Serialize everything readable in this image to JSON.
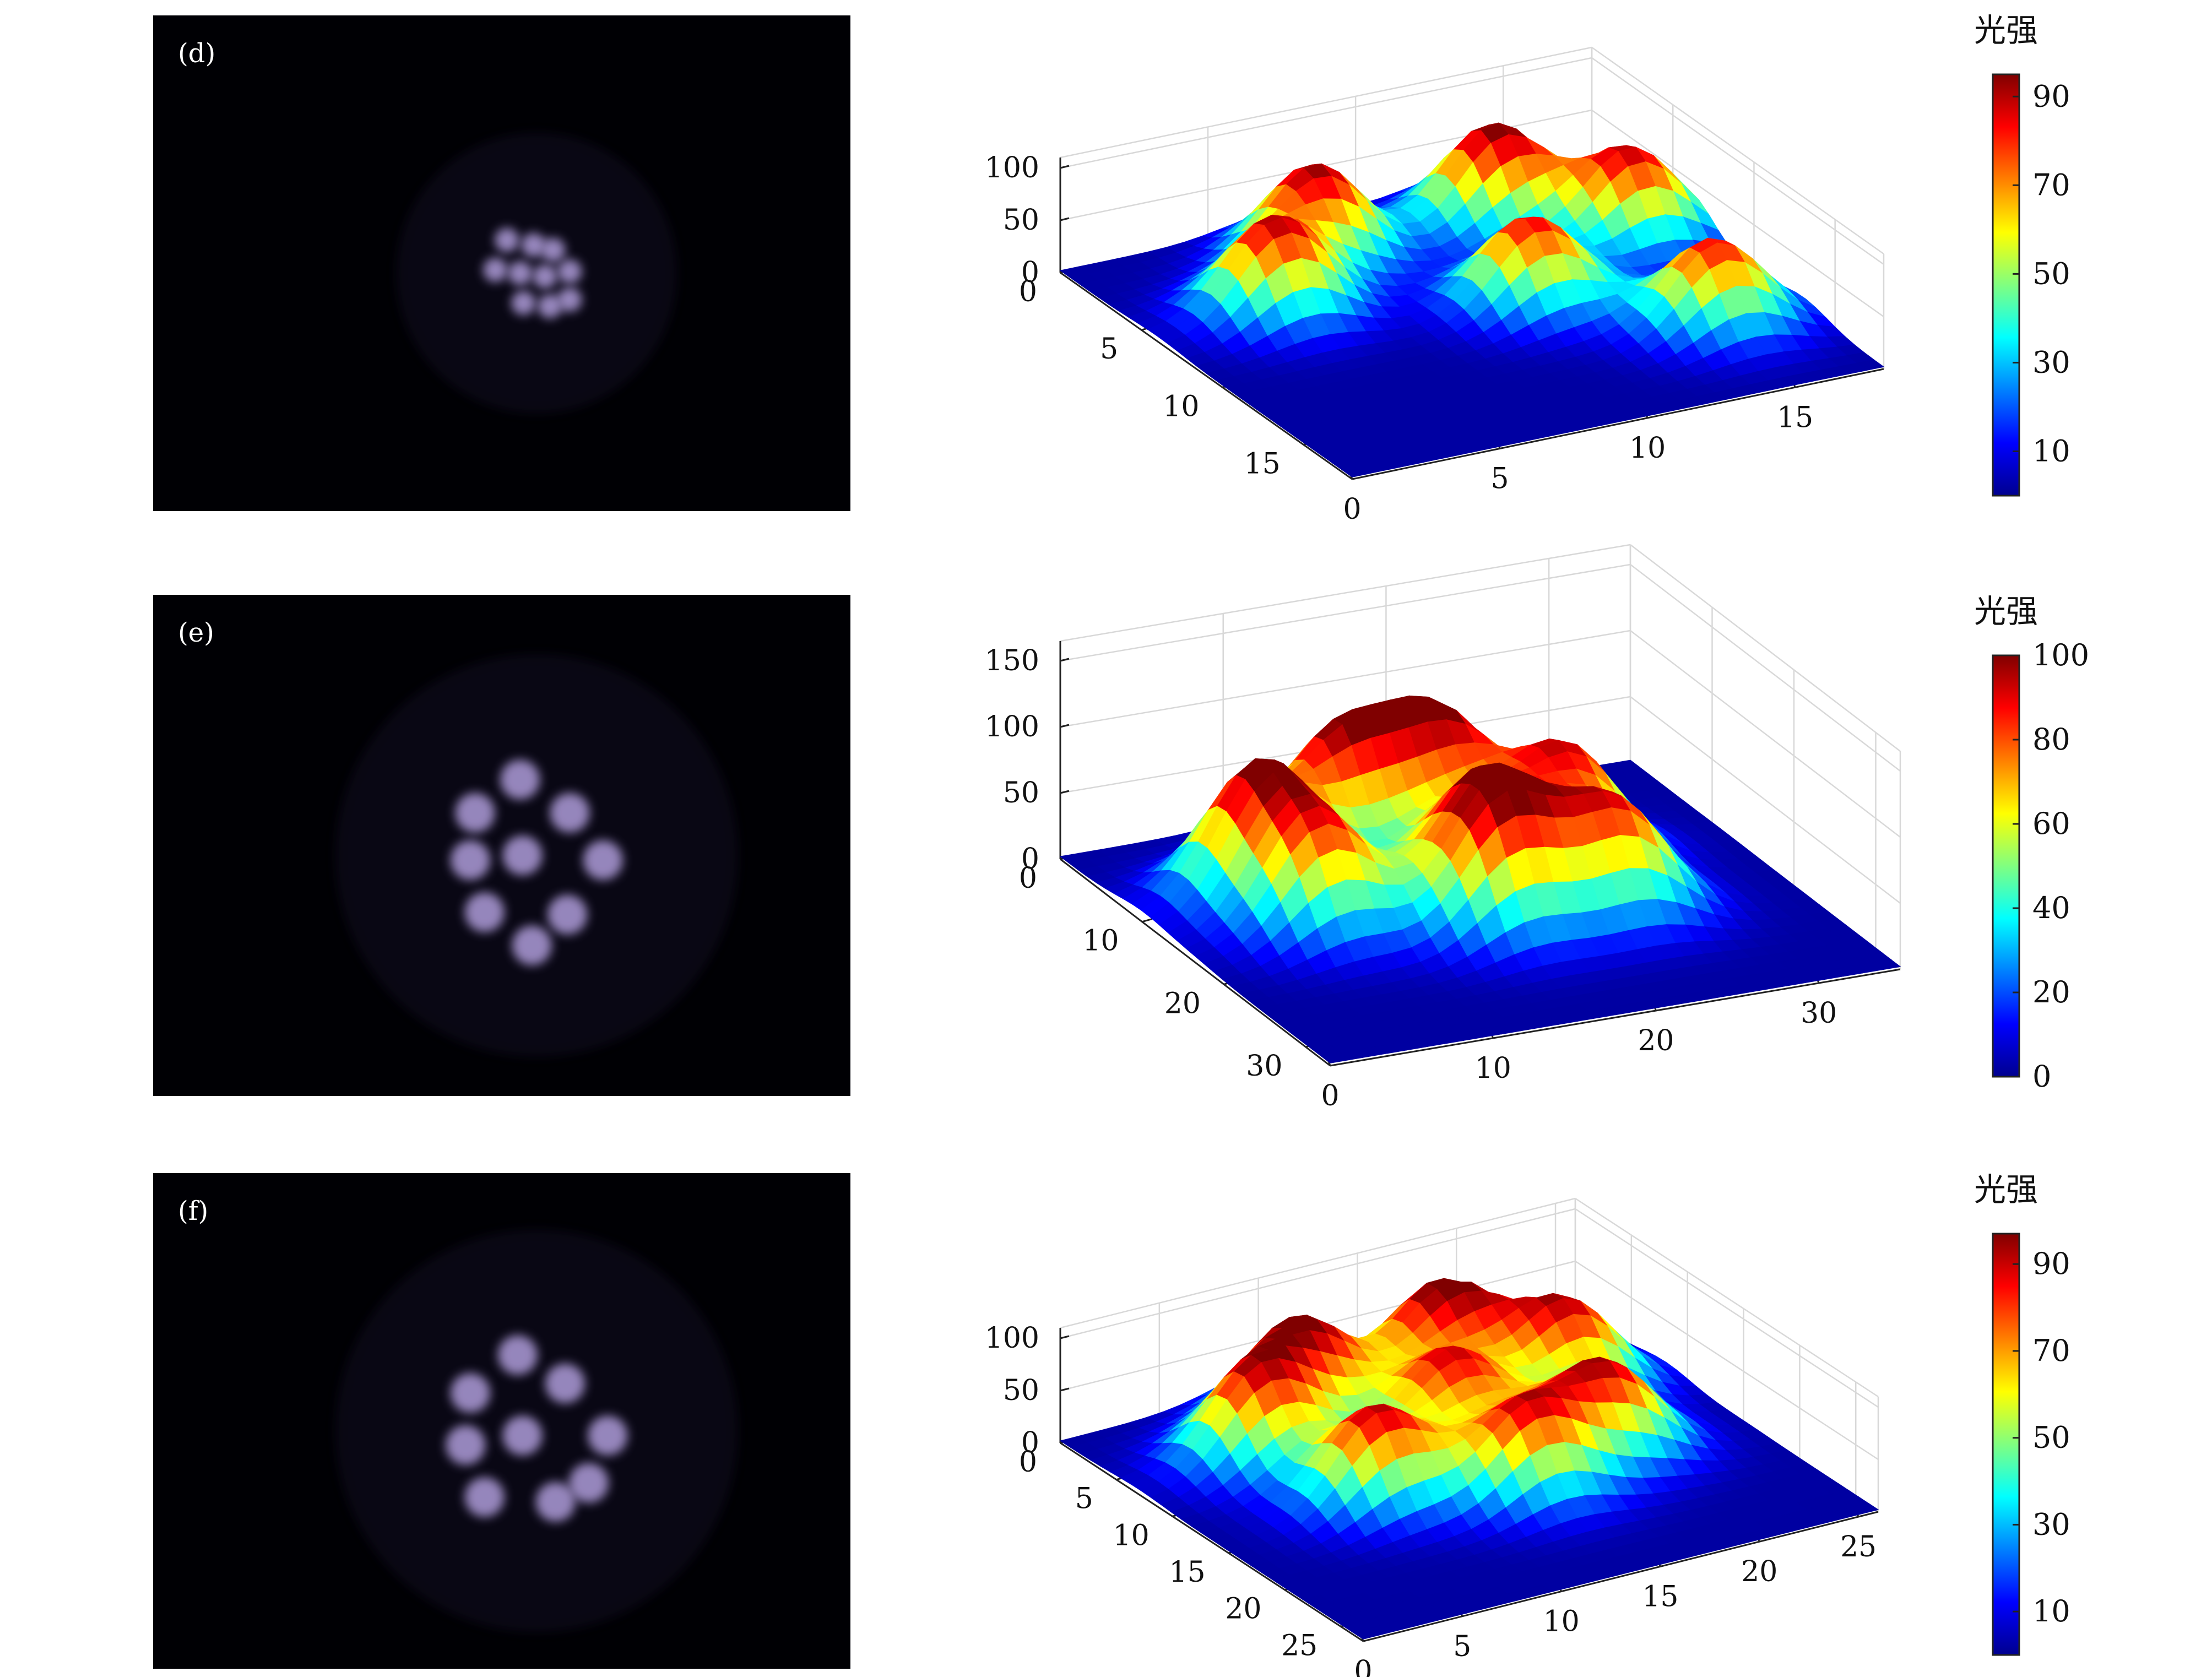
{
  "figure": {
    "background": "#ffffff"
  },
  "style": {
    "photo_background": "#000004",
    "photo_glow": "#b9a6e6",
    "colormap": [
      "#00008f",
      "#0000ff",
      "#0080ff",
      "#00ffff",
      "#80ff80",
      "#ffff00",
      "#ff8000",
      "#ff0000",
      "#800000"
    ]
  },
  "chart_data": [
    {
      "type": "heatmap",
      "panel_label": "(d)",
      "photo": {
        "spots": [
          [
            0.32,
            0.3
          ],
          [
            0.48,
            0.33
          ],
          [
            0.6,
            0.36
          ],
          [
            0.25,
            0.48
          ],
          [
            0.4,
            0.5
          ],
          [
            0.55,
            0.52
          ],
          [
            0.7,
            0.49
          ],
          [
            0.42,
            0.68
          ],
          [
            0.58,
            0.7
          ],
          [
            0.7,
            0.66
          ]
        ]
      },
      "z_ticks": [
        "0",
        "50",
        "100"
      ],
      "z_range": [
        0,
        100
      ],
      "y_ticks": [
        "0",
        "5",
        "10",
        "15"
      ],
      "y_range": [
        0,
        18
      ],
      "x_ticks": [
        "0",
        "5",
        "10",
        "15"
      ],
      "x_range": [
        0,
        18
      ],
      "peaks": [
        {
          "x": 4,
          "y": 6,
          "z": 90
        },
        {
          "x": 7,
          "y": 3,
          "z": 92
        },
        {
          "x": 13,
          "y": 3,
          "z": 95
        },
        {
          "x": 16,
          "y": 6,
          "z": 88
        },
        {
          "x": 11,
          "y": 9,
          "z": 85
        },
        {
          "x": 15,
          "y": 13,
          "z": 84
        }
      ],
      "colorbar": {
        "label": "光强",
        "ticks": [
          "10",
          "30",
          "50",
          "70",
          "90"
        ],
        "min": 0,
        "max": 95
      }
    },
    {
      "type": "heatmap",
      "panel_label": "(e)",
      "photo": {
        "spots": [
          [
            0.43,
            0.18
          ],
          [
            0.24,
            0.32
          ],
          [
            0.64,
            0.32
          ],
          [
            0.22,
            0.52
          ],
          [
            0.44,
            0.5
          ],
          [
            0.78,
            0.52
          ],
          [
            0.28,
            0.74
          ],
          [
            0.63,
            0.75
          ],
          [
            0.48,
            0.88
          ]
        ]
      },
      "z_ticks": [
        "0",
        "50",
        "100",
        "150"
      ],
      "z_range": [
        0,
        150
      ],
      "y_ticks": [
        "0",
        "10",
        "20",
        "30"
      ],
      "y_range": [
        0,
        33
      ],
      "x_ticks": [
        "0",
        "10",
        "20",
        "30"
      ],
      "x_range": [
        0,
        35
      ],
      "peaks": [
        {
          "x": 7,
          "y": 10,
          "z": 95
        },
        {
          "x": 8,
          "y": 16,
          "z": 78
        },
        {
          "x": 14,
          "y": 6,
          "z": 88
        },
        {
          "x": 20,
          "y": 6,
          "z": 92
        },
        {
          "x": 18,
          "y": 15,
          "z": 75
        },
        {
          "x": 17,
          "y": 20,
          "z": 80
        },
        {
          "x": 25,
          "y": 12,
          "z": 85
        },
        {
          "x": 24,
          "y": 20,
          "z": 82
        }
      ],
      "colorbar": {
        "label": "光强",
        "ticks": [
          "0",
          "20",
          "40",
          "60",
          "80",
          "100"
        ],
        "min": 0,
        "max": 100
      }
    },
    {
      "type": "heatmap",
      "panel_label": "(f)",
      "photo": {
        "spots": [
          [
            0.42,
            0.18
          ],
          [
            0.22,
            0.34
          ],
          [
            0.62,
            0.3
          ],
          [
            0.2,
            0.56
          ],
          [
            0.44,
            0.52
          ],
          [
            0.8,
            0.52
          ],
          [
            0.28,
            0.78
          ],
          [
            0.58,
            0.8
          ],
          [
            0.72,
            0.72
          ]
        ]
      },
      "z_ticks": [
        "0",
        "50",
        "100"
      ],
      "z_range": [
        0,
        100
      ],
      "y_ticks": [
        "0",
        "5",
        "10",
        "15",
        "20",
        "25"
      ],
      "y_range": [
        0,
        27
      ],
      "x_ticks": [
        "0",
        "5",
        "10",
        "15",
        "20",
        "25"
      ],
      "x_range": [
        0,
        26
      ],
      "peaks": [
        {
          "x": 6,
          "y": 7,
          "z": 88
        },
        {
          "x": 10,
          "y": 4,
          "z": 92
        },
        {
          "x": 17,
          "y": 4,
          "z": 97
        },
        {
          "x": 21,
          "y": 8,
          "z": 88
        },
        {
          "x": 14,
          "y": 10,
          "z": 86
        },
        {
          "x": 8,
          "y": 14,
          "z": 90
        },
        {
          "x": 14,
          "y": 17,
          "z": 85
        },
        {
          "x": 19,
          "y": 15,
          "z": 87
        }
      ],
      "colorbar": {
        "label": "光强",
        "ticks": [
          "10",
          "30",
          "50",
          "70",
          "90"
        ],
        "min": 0,
        "max": 97
      }
    }
  ]
}
